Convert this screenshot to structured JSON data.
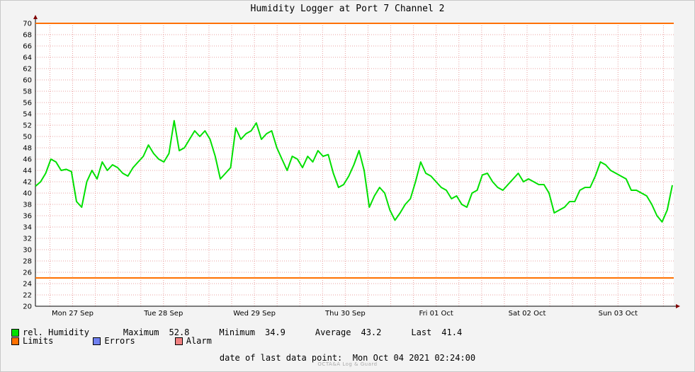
{
  "chart_data": {
    "type": "line",
    "title": "Humidity Logger at Port 7 Channel 2",
    "ylim": [
      20,
      70
    ],
    "y_ticks": [
      20,
      22,
      24,
      26,
      28,
      30,
      32,
      34,
      36,
      38,
      40,
      42,
      44,
      46,
      48,
      50,
      52,
      54,
      56,
      58,
      60,
      62,
      64,
      66,
      68,
      70
    ],
    "x_tick_labels": [
      "Mon 27 Sep",
      "Tue 28 Sep",
      "Wed 29 Sep",
      "Thu 30 Sep",
      "Fri 01 Oct",
      "Sat 02 Oct",
      "Sun 03 Oct"
    ],
    "grid": true,
    "limits": {
      "upper": 70,
      "lower": 25
    },
    "series": [
      {
        "name": "rel. Humidity",
        "x_start": "Mon 27 Sep 00:00",
        "x_end": "Mon Oct 04 2021 02:24:00",
        "values": [
          41.2,
          42.0,
          43.5,
          46.0,
          45.5,
          44.0,
          44.2,
          43.8,
          38.5,
          37.5,
          42.0,
          44.0,
          42.5,
          45.5,
          44.0,
          45.0,
          44.5,
          43.5,
          43.0,
          44.5,
          45.5,
          46.5,
          48.5,
          47.0,
          46.0,
          45.5,
          47.0,
          52.8,
          47.5,
          48.0,
          49.5,
          51.0,
          50.0,
          51.0,
          49.5,
          46.5,
          42.5,
          43.5,
          44.5,
          51.5,
          49.5,
          50.5,
          51.0,
          52.4,
          49.5,
          50.5,
          51.0,
          48.0,
          46.0,
          44.0,
          46.5,
          46.0,
          44.5,
          46.5,
          45.5,
          47.5,
          46.5,
          46.8,
          43.5,
          41.0,
          41.5,
          43.0,
          45.0,
          47.5,
          44.0,
          37.5,
          39.5,
          41.0,
          40.0,
          37.0,
          35.2,
          36.5,
          38.0,
          39.0,
          42.0,
          45.5,
          43.5,
          43.0,
          42.0,
          41.0,
          40.5,
          39.0,
          39.5,
          38.0,
          37.5,
          40.0,
          40.5,
          43.2,
          43.5,
          42.0,
          41.0,
          40.5,
          41.5,
          42.5,
          43.5,
          42.0,
          42.5,
          42.0,
          41.5,
          41.5,
          40.0,
          36.5,
          37.0,
          37.5,
          38.5,
          38.5,
          40.5,
          41.0,
          41.0,
          43.0,
          45.5,
          45.0,
          44.0,
          43.5,
          43.0,
          42.5,
          40.5,
          40.5,
          40.0,
          39.5,
          38.0,
          36.0,
          34.9,
          37.0,
          41.4
        ]
      }
    ],
    "legend": [
      {
        "name": "rel. Humidity",
        "color": "#00e000"
      },
      {
        "name": "Limits",
        "color": "#ff7000"
      },
      {
        "name": "Errors",
        "color": "#7080f0"
      },
      {
        "name": "Alarm",
        "color": "#f08080"
      }
    ]
  },
  "legend": {
    "humidity_label": "rel. Humidity",
    "limits_label": "Limits",
    "errors_label": "Errors",
    "alarm_label": "Alarm"
  },
  "stats": {
    "maximum_label": "Maximum",
    "maximum_value": "52.8",
    "minimum_label": "Minimum",
    "minimum_value": "34.9",
    "average_label": "Average",
    "average_value": "43.2",
    "last_label": "Last",
    "last_value": "41.4"
  },
  "footer": {
    "label": "date of last data point:",
    "value": "Mon Oct 04 2021 02:24:00"
  },
  "watermark": "OCTA&A Log & Guard",
  "colors": {
    "background": "#f3f3f3",
    "plot_background": "#ffffff",
    "grid": "#e8a0a0",
    "series": "#00e000",
    "limits": "#ff7000",
    "axis_arrow": "#800000"
  }
}
